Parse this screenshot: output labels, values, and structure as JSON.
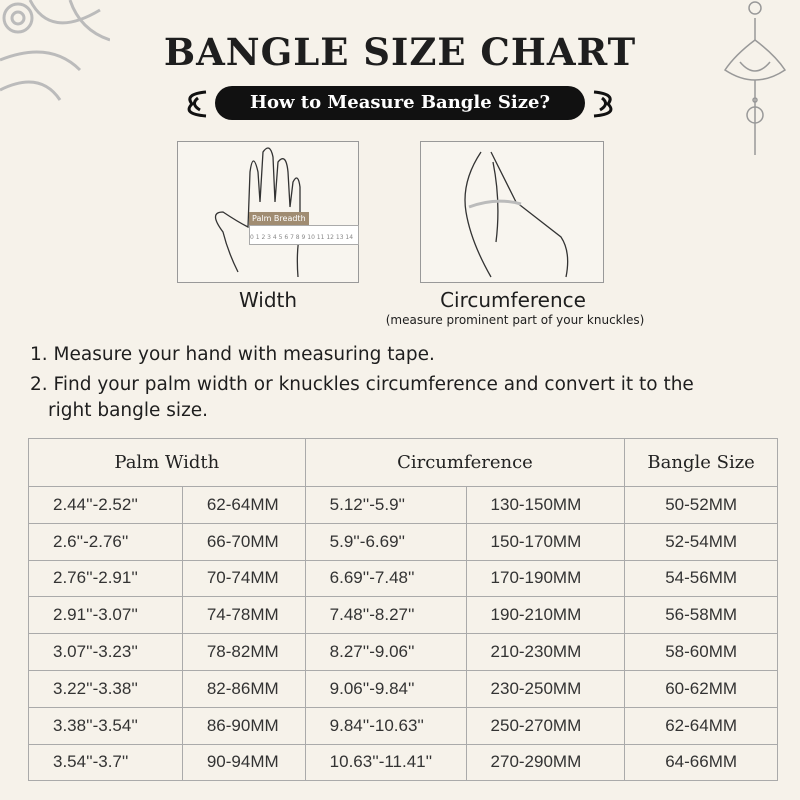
{
  "title": "BANGLE SIZE CHART",
  "subtitle": "How to Measure Bangle Size?",
  "figures": [
    {
      "caption": "Width",
      "ruler_label": "Palm Breadth",
      "ruler_ticks": "0 1 2 3 4 5 6 7 8 9 10 11 12 13 14"
    },
    {
      "caption": "Circumference",
      "note": "(measure prominent part of your knuckles)"
    }
  ],
  "steps": [
    "1. Measure your hand with measuring tape.",
    "2. Find your palm width or knuckles circumference and convert it to the",
    "right bangle size."
  ],
  "table": {
    "headers": [
      "Palm Width",
      "Circumference",
      "Bangle Size"
    ],
    "rows": [
      [
        "2.44''-2.52''",
        "62-64MM",
        "5.12''-5.9''",
        "130-150MM",
        "50-52MM"
      ],
      [
        "2.6''-2.76''",
        "66-70MM",
        "5.9''-6.69''",
        "150-170MM",
        "52-54MM"
      ],
      [
        "2.76''-2.91''",
        "70-74MM",
        "6.69''-7.48''",
        "170-190MM",
        "54-56MM"
      ],
      [
        "2.91''-3.07''",
        "74-78MM",
        "7.48''-8.27''",
        "190-210MM",
        "56-58MM"
      ],
      [
        "3.07''-3.23''",
        "78-82MM",
        "8.27''-9.06''",
        "210-230MM",
        "58-60MM"
      ],
      [
        "3.22''-3.38''",
        "82-86MM",
        "9.06''-9.84''",
        "230-250MM",
        "60-62MM"
      ],
      [
        "3.38''-3.54''",
        "86-90MM",
        "9.84''-10.63''",
        "250-270MM",
        "62-64MM"
      ],
      [
        "3.54''-3.7''",
        "90-94MM",
        "10.63''-11.41''",
        "270-290MM",
        "64-66MM"
      ]
    ]
  },
  "colors": {
    "background": "#f6f2ea",
    "pill": "#111111",
    "ruler_label": "#a08c72"
  }
}
